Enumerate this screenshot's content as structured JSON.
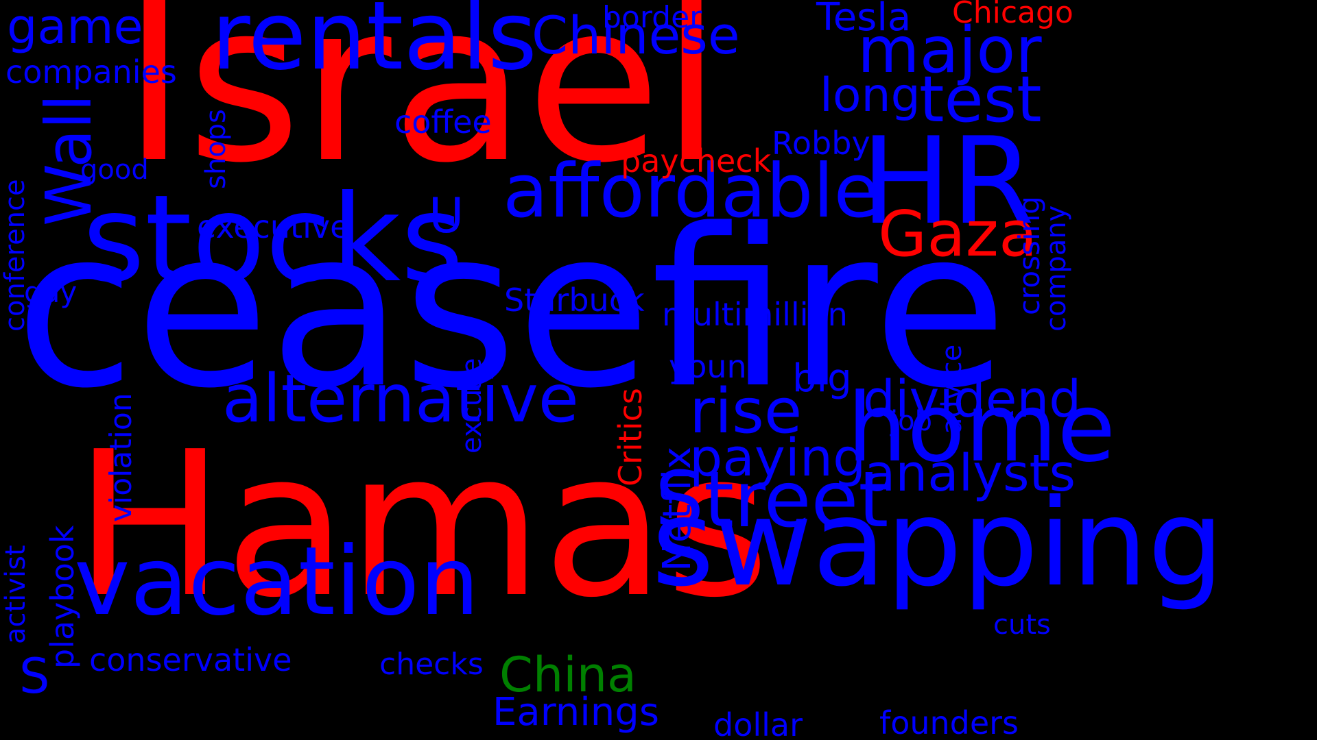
{
  "colors": {
    "background": "#000000",
    "blue": "#0000ff",
    "red": "#ff0000",
    "green": "#008000"
  },
  "words": [
    {
      "id": "israel",
      "text": "Israel",
      "color": "red"
    },
    {
      "id": "ceasefire",
      "text": "ceasefire",
      "color": "blue"
    },
    {
      "id": "hamas",
      "text": "Hamas",
      "color": "red"
    },
    {
      "id": "stocks",
      "text": "stocks",
      "color": "blue"
    },
    {
      "id": "rentals",
      "text": "rentals",
      "color": "blue"
    },
    {
      "id": "hr",
      "text": "HR",
      "color": "blue"
    },
    {
      "id": "swapping",
      "text": "swapping",
      "color": "blue"
    },
    {
      "id": "vacation",
      "text": "vacation",
      "color": "blue"
    },
    {
      "id": "home",
      "text": "home",
      "color": "blue"
    },
    {
      "id": "alternative",
      "text": "alternative",
      "color": "blue"
    },
    {
      "id": "affordable",
      "text": "affordable",
      "color": "blue"
    },
    {
      "id": "street",
      "text": "Street",
      "color": "blue"
    },
    {
      "id": "wall",
      "text": "Wall",
      "color": "blue"
    },
    {
      "id": "gaza",
      "text": "Gaza",
      "color": "red"
    },
    {
      "id": "major",
      "text": "major",
      "color": "blue"
    },
    {
      "id": "test",
      "text": "test",
      "color": "blue"
    },
    {
      "id": "chinese",
      "text": "Chinese",
      "color": "blue"
    },
    {
      "id": "rise",
      "text": "rise",
      "color": "blue"
    },
    {
      "id": "dividend",
      "text": "dividend",
      "color": "blue"
    },
    {
      "id": "analysts",
      "text": "analysts",
      "color": "blue"
    },
    {
      "id": "paying",
      "text": "paying",
      "color": "blue"
    },
    {
      "id": "game",
      "text": "game",
      "color": "blue"
    },
    {
      "id": "long",
      "text": "long",
      "color": "blue"
    },
    {
      "id": "u",
      "text": "U",
      "color": "blue"
    },
    {
      "id": "china",
      "text": "China",
      "color": "green"
    },
    {
      "id": "s",
      "text": "S",
      "color": "blue"
    },
    {
      "id": "earnings",
      "text": "Earnings",
      "color": "blue"
    },
    {
      "id": "tesla",
      "text": "Tesla",
      "color": "blue"
    },
    {
      "id": "netflix",
      "text": "Netflix",
      "color": "blue"
    },
    {
      "id": "big",
      "text": "big",
      "color": "blue"
    },
    {
      "id": "critics",
      "text": "Critics",
      "color": "red"
    },
    {
      "id": "conservative",
      "text": "conservative",
      "color": "blue"
    },
    {
      "id": "chicago",
      "text": "Chicago",
      "color": "red"
    },
    {
      "id": "starbuck",
      "text": "Starbuck",
      "color": "blue"
    },
    {
      "id": "multimillion",
      "text": "multimillion",
      "color": "blue"
    },
    {
      "id": "playbook",
      "text": "playbook",
      "color": "blue"
    },
    {
      "id": "executive",
      "text": "executive",
      "color": "blue"
    },
    {
      "id": "companies",
      "text": "companies",
      "color": "blue"
    },
    {
      "id": "paycheck",
      "text": "paycheck",
      "color": "red"
    },
    {
      "id": "robby",
      "text": "Robby",
      "color": "blue"
    },
    {
      "id": "coffee",
      "text": "coffee",
      "color": "blue"
    },
    {
      "id": "border",
      "text": "border",
      "color": "blue"
    },
    {
      "id": "young",
      "text": "young",
      "color": "blue"
    },
    {
      "id": "founders",
      "text": "founders",
      "color": "blue"
    },
    {
      "id": "dollar",
      "text": "dollar",
      "color": "blue"
    },
    {
      "id": "checks",
      "text": "checks",
      "color": "blue"
    },
    {
      "id": "cuts",
      "text": "cuts",
      "color": "blue"
    },
    {
      "id": "job",
      "text": "job",
      "color": "blue"
    },
    {
      "id": "good",
      "text": "good",
      "color": "blue"
    },
    {
      "id": "gay",
      "text": "gay",
      "color": "blue"
    },
    {
      "id": "violation",
      "text": "violation",
      "color": "blue"
    },
    {
      "id": "conference",
      "text": "conference",
      "color": "blue"
    },
    {
      "id": "activist",
      "text": "activist",
      "color": "blue"
    },
    {
      "id": "shops",
      "text": "shops",
      "color": "blue"
    },
    {
      "id": "excuse",
      "text": "excuse",
      "color": "blue"
    },
    {
      "id": "crossing",
      "text": "crossing",
      "color": "blue"
    },
    {
      "id": "company",
      "text": "company",
      "color": "blue"
    },
    {
      "id": "advice",
      "text": "advice",
      "color": "blue"
    }
  ]
}
